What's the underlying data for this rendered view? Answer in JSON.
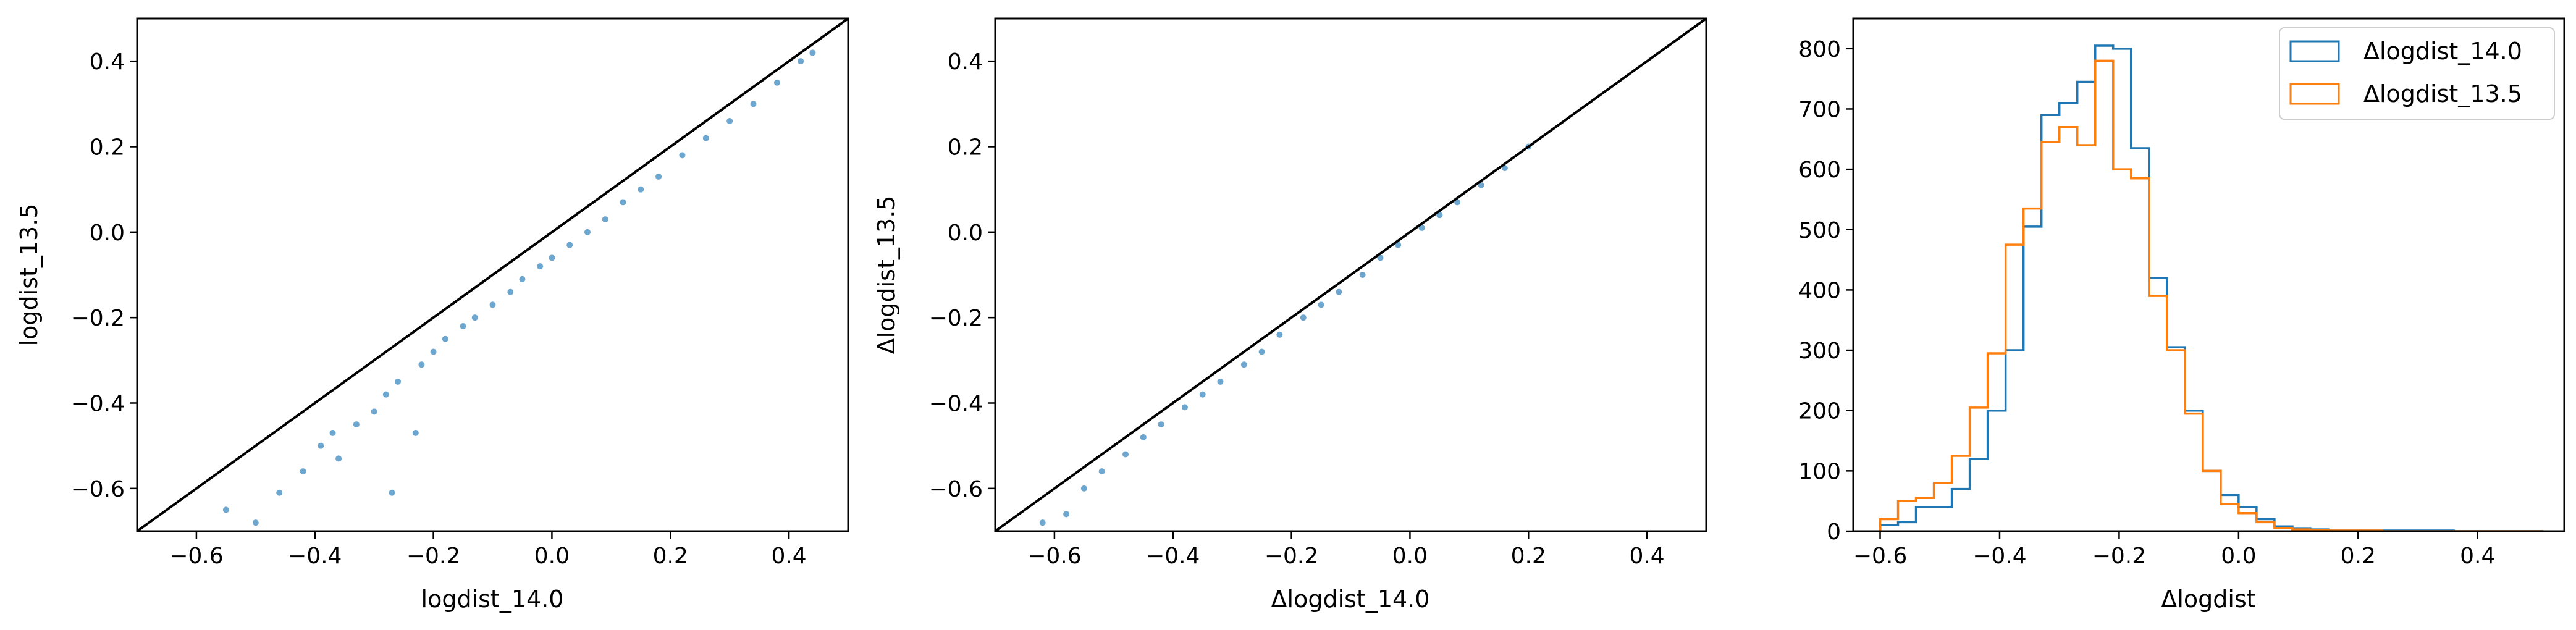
{
  "chart_data": [
    {
      "type": "scatter",
      "title": "",
      "xlabel": "logdist_14.0",
      "ylabel": "logdist_13.5",
      "xlim": [
        -0.7,
        0.5
      ],
      "ylim": [
        -0.7,
        0.5
      ],
      "xticks": [
        -0.6,
        -0.4,
        -0.2,
        0.0,
        0.2,
        0.4
      ],
      "yticks": [
        -0.6,
        -0.4,
        -0.2,
        0.0,
        0.2,
        0.4
      ],
      "xtick_labels": [
        "−0.6",
        "−0.4",
        "−0.2",
        "0.0",
        "0.2",
        "0.4"
      ],
      "ytick_labels": [
        "−0.6",
        "−0.4",
        "−0.2",
        "0.0",
        "0.2",
        "0.4"
      ],
      "grid": false,
      "reference_line": "y = x",
      "relationship": "y ≈ x − 0.05 (points lie below the y = x line)",
      "series": [
        {
          "color": "#1f77b4",
          "points": [
            [
              -0.55,
              -0.65
            ],
            [
              -0.5,
              -0.68
            ],
            [
              -0.46,
              -0.61
            ],
            [
              -0.42,
              -0.56
            ],
            [
              -0.39,
              -0.5
            ],
            [
              -0.37,
              -0.47
            ],
            [
              -0.36,
              -0.53
            ],
            [
              -0.33,
              -0.45
            ],
            [
              -0.3,
              -0.42
            ],
            [
              -0.28,
              -0.38
            ],
            [
              -0.27,
              -0.61
            ],
            [
              -0.26,
              -0.35
            ],
            [
              -0.23,
              -0.47
            ],
            [
              -0.22,
              -0.31
            ],
            [
              -0.2,
              -0.28
            ],
            [
              -0.18,
              -0.25
            ],
            [
              -0.15,
              -0.22
            ],
            [
              -0.13,
              -0.2
            ],
            [
              -0.1,
              -0.17
            ],
            [
              -0.07,
              -0.14
            ],
            [
              -0.05,
              -0.11
            ],
            [
              -0.02,
              -0.08
            ],
            [
              0.0,
              -0.06
            ],
            [
              0.03,
              -0.03
            ],
            [
              0.06,
              0.0
            ],
            [
              0.09,
              0.03
            ],
            [
              0.12,
              0.07
            ],
            [
              0.15,
              0.1
            ],
            [
              0.18,
              0.13
            ],
            [
              0.22,
              0.18
            ],
            [
              0.26,
              0.22
            ],
            [
              0.3,
              0.26
            ],
            [
              0.34,
              0.3
            ],
            [
              0.38,
              0.35
            ],
            [
              0.42,
              0.4
            ],
            [
              0.44,
              0.42
            ]
          ]
        }
      ]
    },
    {
      "type": "scatter",
      "title": "",
      "xlabel": "Δlogdist_14.0",
      "ylabel": "Δlogdist_13.5",
      "xlim": [
        -0.7,
        0.5
      ],
      "ylim": [
        -0.7,
        0.5
      ],
      "xticks": [
        -0.6,
        -0.4,
        -0.2,
        0.0,
        0.2,
        0.4
      ],
      "yticks": [
        -0.6,
        -0.4,
        -0.2,
        0.0,
        0.2,
        0.4
      ],
      "xtick_labels": [
        "−0.6",
        "−0.4",
        "−0.2",
        "0.0",
        "0.2",
        "0.4"
      ],
      "ytick_labels": [
        "−0.6",
        "−0.4",
        "−0.2",
        "0.0",
        "0.2",
        "0.4"
      ],
      "grid": false,
      "reference_line": "y = x",
      "relationship": "y ≈ x − 0.02 (points close to the y = x line)",
      "series": [
        {
          "color": "#1f77b4",
          "points": [
            [
              -0.62,
              -0.68
            ],
            [
              -0.58,
              -0.66
            ],
            [
              -0.55,
              -0.6
            ],
            [
              -0.52,
              -0.56
            ],
            [
              -0.48,
              -0.52
            ],
            [
              -0.45,
              -0.48
            ],
            [
              -0.42,
              -0.45
            ],
            [
              -0.38,
              -0.41
            ],
            [
              -0.35,
              -0.38
            ],
            [
              -0.32,
              -0.35
            ],
            [
              -0.28,
              -0.31
            ],
            [
              -0.25,
              -0.28
            ],
            [
              -0.22,
              -0.24
            ],
            [
              -0.18,
              -0.2
            ],
            [
              -0.15,
              -0.17
            ],
            [
              -0.12,
              -0.14
            ],
            [
              -0.08,
              -0.1
            ],
            [
              -0.05,
              -0.06
            ],
            [
              -0.02,
              -0.03
            ],
            [
              0.02,
              0.01
            ],
            [
              0.05,
              0.04
            ],
            [
              0.08,
              0.07
            ],
            [
              0.12,
              0.11
            ],
            [
              0.16,
              0.15
            ],
            [
              0.2,
              0.2
            ]
          ]
        }
      ]
    },
    {
      "type": "histogram",
      "title": "",
      "xlabel": "Δlogdist",
      "ylabel": "",
      "xlim": [
        -0.645,
        0.545
      ],
      "ylim": [
        0,
        850
      ],
      "xticks": [
        -0.6,
        -0.4,
        -0.2,
        0.0,
        0.2,
        0.4
      ],
      "yticks": [
        0,
        100,
        200,
        300,
        400,
        500,
        600,
        700,
        800
      ],
      "xtick_labels": [
        "−0.6",
        "−0.4",
        "−0.2",
        "0.0",
        "0.2",
        "0.4"
      ],
      "ytick_labels": [
        "0",
        "100",
        "200",
        "300",
        "400",
        "500",
        "600",
        "700",
        "800"
      ],
      "grid": false,
      "legend_position": "top-right",
      "bin_edges": [
        -0.6,
        -0.57,
        -0.54,
        -0.51,
        -0.48,
        -0.45,
        -0.42,
        -0.39,
        -0.36,
        -0.33,
        -0.3,
        -0.27,
        -0.24,
        -0.21,
        -0.18,
        -0.15,
        -0.12,
        -0.09,
        -0.06,
        -0.03,
        0.0,
        0.03,
        0.06,
        0.09,
        0.12,
        0.15,
        0.18,
        0.21,
        0.24,
        0.27,
        0.3,
        0.33,
        0.36,
        0.39,
        0.42,
        0.45,
        0.48,
        0.51
      ],
      "series": [
        {
          "name": "Δlogdist_14.0",
          "color": "#1f77b4",
          "counts": [
            10,
            15,
            40,
            40,
            70,
            120,
            200,
            300,
            505,
            690,
            710,
            745,
            805,
            800,
            635,
            420,
            305,
            200,
            100,
            60,
            40,
            20,
            8,
            4,
            3,
            1,
            1,
            1,
            1,
            1,
            1,
            1,
            0,
            0,
            0,
            0,
            0
          ]
        },
        {
          "name": "Δlogdist_13.5",
          "color": "#ff7f0e",
          "counts": [
            20,
            50,
            55,
            80,
            125,
            205,
            295,
            475,
            535,
            645,
            670,
            640,
            780,
            600,
            585,
            390,
            300,
            195,
            100,
            45,
            30,
            15,
            5,
            3,
            2,
            1,
            1,
            1,
            0,
            0,
            0,
            0,
            0,
            0,
            0,
            0,
            0
          ]
        }
      ]
    }
  ]
}
